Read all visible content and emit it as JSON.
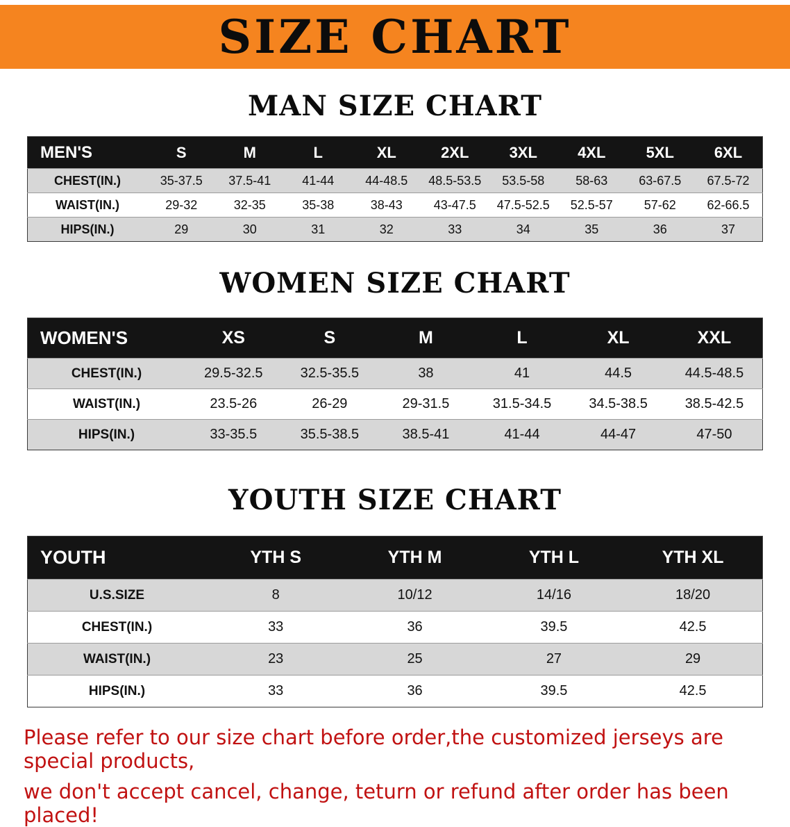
{
  "banner": {
    "title": "SIZE CHART"
  },
  "colors": {
    "banner_bg": "#f5841f",
    "notice_text": "#c11212",
    "stripe_gray": "#d7d7d7",
    "header_black": "#141414"
  },
  "sections": [
    {
      "id": "mens",
      "title": "MAN SIZE CHART",
      "header_label": "MEN'S",
      "columns": [
        "S",
        "M",
        "L",
        "XL",
        "2XL",
        "3XL",
        "4XL",
        "5XL",
        "6XL"
      ],
      "rows": [
        {
          "label": "CHEST(IN.)",
          "values": [
            "35-37.5",
            "37.5-41",
            "41-44",
            "44-48.5",
            "48.5-53.5",
            "53.5-58",
            "58-63",
            "63-67.5",
            "67.5-72"
          ]
        },
        {
          "label": "WAIST(IN.)",
          "values": [
            "29-32",
            "32-35",
            "35-38",
            "38-43",
            "43-47.5",
            "47.5-52.5",
            "52.5-57",
            "57-62",
            "62-66.5"
          ]
        },
        {
          "label": "HIPS(IN.)",
          "values": [
            "29",
            "30",
            "31",
            "32",
            "33",
            "34",
            "35",
            "36",
            "37"
          ]
        }
      ]
    },
    {
      "id": "womens",
      "title": "WOMEN SIZE CHART",
      "header_label": "WOMEN'S",
      "columns": [
        "XS",
        "S",
        "M",
        "L",
        "XL",
        "XXL"
      ],
      "rows": [
        {
          "label": "CHEST(IN.)",
          "values": [
            "29.5-32.5",
            "32.5-35.5",
            "38",
            "41",
            "44.5",
            "44.5-48.5"
          ]
        },
        {
          "label": "WAIST(IN.)",
          "values": [
            "23.5-26",
            "26-29",
            "29-31.5",
            "31.5-34.5",
            "34.5-38.5",
            "38.5-42.5"
          ]
        },
        {
          "label": "HIPS(IN.)",
          "values": [
            "33-35.5",
            "35.5-38.5",
            "38.5-41",
            "41-44",
            "44-47",
            "47-50"
          ]
        }
      ]
    },
    {
      "id": "youth",
      "title": "YOUTH SIZE CHART",
      "header_label": "YOUTH",
      "columns": [
        "YTH S",
        "YTH M",
        "YTH L",
        "YTH XL"
      ],
      "rows": [
        {
          "label": "U.S.SIZE",
          "values": [
            "8",
            "10/12",
            "14/16",
            "18/20"
          ]
        },
        {
          "label": "CHEST(IN.)",
          "values": [
            "33",
            "36",
            "39.5",
            "42.5"
          ]
        },
        {
          "label": "WAIST(IN.)",
          "values": [
            "23",
            "25",
            "27",
            "29"
          ]
        },
        {
          "label": "HIPS(IN.)",
          "values": [
            "33",
            "36",
            "39.5",
            "42.5"
          ]
        }
      ]
    }
  ],
  "footer": {
    "line1": "Please refer to our size chart before order,the customized jerseys are special products,",
    "line2": "we don't accept cancel, change, teturn or refund after order has been placed!"
  }
}
